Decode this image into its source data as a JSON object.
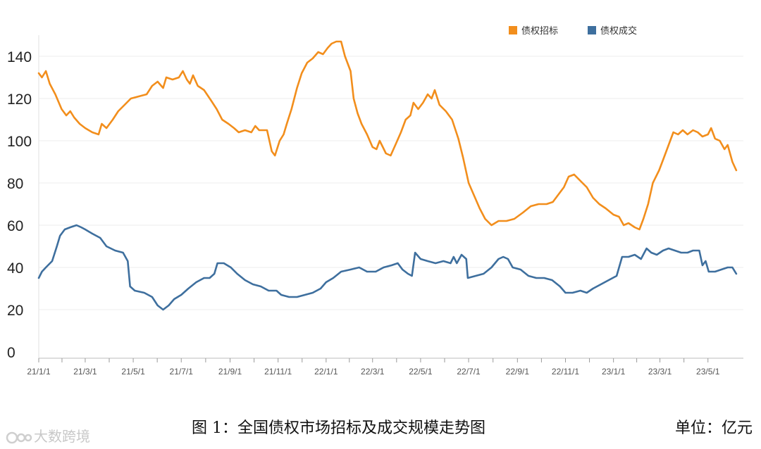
{
  "chart_data": {
    "type": "line",
    "yticks": [
      0,
      20,
      40,
      60,
      80,
      100,
      120,
      140
    ],
    "ylim": [
      0,
      150
    ],
    "xlim": [
      "2021-01-01",
      "2023-06-15"
    ],
    "xticks": [
      "21/1/1",
      "21/3/1",
      "21/5/1",
      "21/7/1",
      "21/9/1",
      "21/11/1",
      "22/1/1",
      "22/3/1",
      "22/5/1",
      "22/7/1",
      "22/9/1",
      "22/11/1",
      "23/1/1",
      "23/3/1",
      "23/5/1"
    ],
    "xtick_dates": [
      "2021-01-01",
      "2021-03-01",
      "2021-05-01",
      "2021-07-01",
      "2021-09-01",
      "2021-11-01",
      "2022-01-01",
      "2022-03-01",
      "2022-05-01",
      "2022-07-01",
      "2022-09-01",
      "2022-11-01",
      "2023-01-01",
      "2023-03-01",
      "2023-05-01"
    ],
    "grid": true,
    "legend_position": "top-right",
    "series": [
      {
        "name": "债权招标",
        "color": "#F28E1C",
        "points": [
          [
            "2021-01-01",
            132
          ],
          [
            "2021-01-05",
            130
          ],
          [
            "2021-01-10",
            133
          ],
          [
            "2021-01-15",
            127
          ],
          [
            "2021-01-22",
            122
          ],
          [
            "2021-01-30",
            115
          ],
          [
            "2021-02-05",
            112
          ],
          [
            "2021-02-10",
            114
          ],
          [
            "2021-02-15",
            111
          ],
          [
            "2021-02-22",
            108
          ],
          [
            "2021-03-01",
            106
          ],
          [
            "2021-03-10",
            104
          ],
          [
            "2021-03-18",
            103
          ],
          [
            "2021-03-22",
            108
          ],
          [
            "2021-03-28",
            106
          ],
          [
            "2021-04-05",
            110
          ],
          [
            "2021-04-12",
            114
          ],
          [
            "2021-04-20",
            117
          ],
          [
            "2021-04-28",
            120
          ],
          [
            "2021-05-08",
            121
          ],
          [
            "2021-05-18",
            122
          ],
          [
            "2021-05-25",
            126
          ],
          [
            "2021-06-01",
            128
          ],
          [
            "2021-06-08",
            125
          ],
          [
            "2021-06-12",
            130
          ],
          [
            "2021-06-20",
            129
          ],
          [
            "2021-06-28",
            130
          ],
          [
            "2021-07-03",
            133
          ],
          [
            "2021-07-08",
            129
          ],
          [
            "2021-07-12",
            127
          ],
          [
            "2021-07-16",
            131
          ],
          [
            "2021-07-22",
            126
          ],
          [
            "2021-07-30",
            124
          ],
          [
            "2021-08-08",
            119
          ],
          [
            "2021-08-15",
            115
          ],
          [
            "2021-08-22",
            110
          ],
          [
            "2021-08-30",
            108
          ],
          [
            "2021-09-06",
            106
          ],
          [
            "2021-09-12",
            104
          ],
          [
            "2021-09-20",
            105
          ],
          [
            "2021-09-28",
            104
          ],
          [
            "2021-10-03",
            107
          ],
          [
            "2021-10-08",
            105
          ],
          [
            "2021-10-18",
            105
          ],
          [
            "2021-10-24",
            95
          ],
          [
            "2021-10-28",
            93
          ],
          [
            "2021-11-03",
            100
          ],
          [
            "2021-11-08",
            103
          ],
          [
            "2021-11-12",
            108
          ],
          [
            "2021-11-18",
            115
          ],
          [
            "2021-11-25",
            125
          ],
          [
            "2021-12-01",
            132
          ],
          [
            "2021-12-08",
            137
          ],
          [
            "2021-12-15",
            139
          ],
          [
            "2021-12-22",
            142
          ],
          [
            "2021-12-28",
            141
          ],
          [
            "2022-01-03",
            144
          ],
          [
            "2022-01-08",
            146
          ],
          [
            "2022-01-14",
            147
          ],
          [
            "2022-01-20",
            147
          ],
          [
            "2022-01-25",
            140
          ],
          [
            "2022-02-01",
            133
          ],
          [
            "2022-02-05",
            120
          ],
          [
            "2022-02-10",
            113
          ],
          [
            "2022-02-15",
            108
          ],
          [
            "2022-02-22",
            103
          ],
          [
            "2022-03-01",
            97
          ],
          [
            "2022-03-06",
            96
          ],
          [
            "2022-03-10",
            100
          ],
          [
            "2022-03-14",
            97
          ],
          [
            "2022-03-18",
            94
          ],
          [
            "2022-03-24",
            93
          ],
          [
            "2022-03-30",
            98
          ],
          [
            "2022-04-06",
            104
          ],
          [
            "2022-04-12",
            110
          ],
          [
            "2022-04-18",
            112
          ],
          [
            "2022-04-22",
            118
          ],
          [
            "2022-04-28",
            115
          ],
          [
            "2022-05-04",
            118
          ],
          [
            "2022-05-10",
            122
          ],
          [
            "2022-05-15",
            120
          ],
          [
            "2022-05-19",
            124
          ],
          [
            "2022-05-25",
            117
          ],
          [
            "2022-06-02",
            114
          ],
          [
            "2022-06-10",
            110
          ],
          [
            "2022-06-18",
            101
          ],
          [
            "2022-06-24",
            92
          ],
          [
            "2022-07-01",
            80
          ],
          [
            "2022-07-08",
            74
          ],
          [
            "2022-07-15",
            68
          ],
          [
            "2022-07-22",
            63
          ],
          [
            "2022-07-30",
            60
          ],
          [
            "2022-08-08",
            62
          ],
          [
            "2022-08-18",
            62
          ],
          [
            "2022-08-28",
            63
          ],
          [
            "2022-09-08",
            66
          ],
          [
            "2022-09-18",
            69
          ],
          [
            "2022-09-28",
            70
          ],
          [
            "2022-10-08",
            70
          ],
          [
            "2022-10-16",
            71
          ],
          [
            "2022-10-22",
            74
          ],
          [
            "2022-10-30",
            78
          ],
          [
            "2022-11-05",
            83
          ],
          [
            "2022-11-12",
            84
          ],
          [
            "2022-11-20",
            81
          ],
          [
            "2022-11-28",
            78
          ],
          [
            "2022-12-06",
            73
          ],
          [
            "2022-12-14",
            70
          ],
          [
            "2022-12-22",
            68
          ],
          [
            "2023-01-01",
            65
          ],
          [
            "2023-01-08",
            64
          ],
          [
            "2023-01-14",
            60
          ],
          [
            "2023-01-20",
            61
          ],
          [
            "2023-01-28",
            59
          ],
          [
            "2023-02-03",
            58
          ],
          [
            "2023-02-08",
            63
          ],
          [
            "2023-02-14",
            70
          ],
          [
            "2023-02-20",
            80
          ],
          [
            "2023-02-28",
            86
          ],
          [
            "2023-03-06",
            92
          ],
          [
            "2023-03-12",
            98
          ],
          [
            "2023-03-18",
            104
          ],
          [
            "2023-03-24",
            103
          ],
          [
            "2023-03-30",
            105
          ],
          [
            "2023-04-05",
            103
          ],
          [
            "2023-04-12",
            105
          ],
          [
            "2023-04-18",
            104
          ],
          [
            "2023-04-24",
            102
          ],
          [
            "2023-05-01",
            103
          ],
          [
            "2023-05-05",
            106
          ],
          [
            "2023-05-10",
            101
          ],
          [
            "2023-05-16",
            100
          ],
          [
            "2023-05-22",
            96
          ],
          [
            "2023-05-26",
            98
          ],
          [
            "2023-06-01",
            90
          ],
          [
            "2023-06-06",
            86
          ]
        ]
      },
      {
        "name": "债权成交",
        "color": "#3E6F9E",
        "points": [
          [
            "2021-01-01",
            35
          ],
          [
            "2021-01-05",
            38
          ],
          [
            "2021-01-10",
            40
          ],
          [
            "2021-01-18",
            43
          ],
          [
            "2021-01-24",
            50
          ],
          [
            "2021-01-28",
            55
          ],
          [
            "2021-02-03",
            58
          ],
          [
            "2021-02-10",
            59
          ],
          [
            "2021-02-18",
            60
          ],
          [
            "2021-02-24",
            59
          ],
          [
            "2021-03-01",
            58
          ],
          [
            "2021-03-10",
            56
          ],
          [
            "2021-03-20",
            54
          ],
          [
            "2021-03-28",
            50
          ],
          [
            "2021-04-08",
            48
          ],
          [
            "2021-04-18",
            47
          ],
          [
            "2021-04-24",
            43
          ],
          [
            "2021-04-27",
            31
          ],
          [
            "2021-05-03",
            29
          ],
          [
            "2021-05-15",
            28
          ],
          [
            "2021-05-25",
            26
          ],
          [
            "2021-06-01",
            22
          ],
          [
            "2021-06-08",
            20
          ],
          [
            "2021-06-15",
            22
          ],
          [
            "2021-06-22",
            25
          ],
          [
            "2021-07-01",
            27
          ],
          [
            "2021-07-10",
            30
          ],
          [
            "2021-07-20",
            33
          ],
          [
            "2021-07-30",
            35
          ],
          [
            "2021-08-06",
            35
          ],
          [
            "2021-08-12",
            37
          ],
          [
            "2021-08-16",
            42
          ],
          [
            "2021-08-24",
            42
          ],
          [
            "2021-09-02",
            40
          ],
          [
            "2021-09-10",
            37
          ],
          [
            "2021-09-20",
            34
          ],
          [
            "2021-09-30",
            32
          ],
          [
            "2021-10-10",
            31
          ],
          [
            "2021-10-20",
            29
          ],
          [
            "2021-10-30",
            29
          ],
          [
            "2021-11-05",
            27
          ],
          [
            "2021-11-15",
            26
          ],
          [
            "2021-11-25",
            26
          ],
          [
            "2021-12-05",
            27
          ],
          [
            "2021-12-15",
            28
          ],
          [
            "2021-12-25",
            30
          ],
          [
            "2022-01-01",
            33
          ],
          [
            "2022-01-10",
            35
          ],
          [
            "2022-01-20",
            38
          ],
          [
            "2022-02-01",
            39
          ],
          [
            "2022-02-12",
            40
          ],
          [
            "2022-02-22",
            38
          ],
          [
            "2022-03-05",
            38
          ],
          [
            "2022-03-15",
            40
          ],
          [
            "2022-03-25",
            41
          ],
          [
            "2022-04-02",
            42
          ],
          [
            "2022-04-08",
            39
          ],
          [
            "2022-04-15",
            37
          ],
          [
            "2022-04-20",
            36
          ],
          [
            "2022-04-24",
            47
          ],
          [
            "2022-05-01",
            44
          ],
          [
            "2022-05-10",
            43
          ],
          [
            "2022-05-20",
            42
          ],
          [
            "2022-05-30",
            43
          ],
          [
            "2022-06-08",
            42
          ],
          [
            "2022-06-12",
            45
          ],
          [
            "2022-06-16",
            42
          ],
          [
            "2022-06-22",
            46
          ],
          [
            "2022-06-28",
            44
          ],
          [
            "2022-06-30",
            35
          ],
          [
            "2022-07-10",
            36
          ],
          [
            "2022-07-20",
            37
          ],
          [
            "2022-07-30",
            40
          ],
          [
            "2022-08-08",
            44
          ],
          [
            "2022-08-14",
            45
          ],
          [
            "2022-08-20",
            44
          ],
          [
            "2022-08-26",
            40
          ],
          [
            "2022-09-05",
            39
          ],
          [
            "2022-09-15",
            36
          ],
          [
            "2022-09-25",
            35
          ],
          [
            "2022-10-05",
            35
          ],
          [
            "2022-10-15",
            34
          ],
          [
            "2022-10-25",
            31
          ],
          [
            "2022-11-01",
            28
          ],
          [
            "2022-11-10",
            28
          ],
          [
            "2022-11-20",
            29
          ],
          [
            "2022-11-28",
            28
          ],
          [
            "2022-12-06",
            30
          ],
          [
            "2022-12-16",
            32
          ],
          [
            "2022-12-26",
            34
          ],
          [
            "2023-01-05",
            36
          ],
          [
            "2023-01-12",
            45
          ],
          [
            "2023-01-20",
            45
          ],
          [
            "2023-01-28",
            46
          ],
          [
            "2023-02-05",
            44
          ],
          [
            "2023-02-12",
            49
          ],
          [
            "2023-02-18",
            47
          ],
          [
            "2023-02-25",
            46
          ],
          [
            "2023-03-05",
            48
          ],
          [
            "2023-03-12",
            49
          ],
          [
            "2023-03-20",
            48
          ],
          [
            "2023-03-28",
            47
          ],
          [
            "2023-04-05",
            47
          ],
          [
            "2023-04-12",
            48
          ],
          [
            "2023-04-20",
            48
          ],
          [
            "2023-04-24",
            41
          ],
          [
            "2023-04-28",
            43
          ],
          [
            "2023-05-02",
            38
          ],
          [
            "2023-05-10",
            38
          ],
          [
            "2023-05-18",
            39
          ],
          [
            "2023-05-26",
            40
          ],
          [
            "2023-06-01",
            40
          ],
          [
            "2023-06-06",
            37
          ]
        ]
      }
    ]
  },
  "caption": {
    "title": "图 1：全国债权市场招标及成交规模走势图",
    "unit": "单位：亿元"
  },
  "watermark": {
    "text": "大数跨境"
  }
}
